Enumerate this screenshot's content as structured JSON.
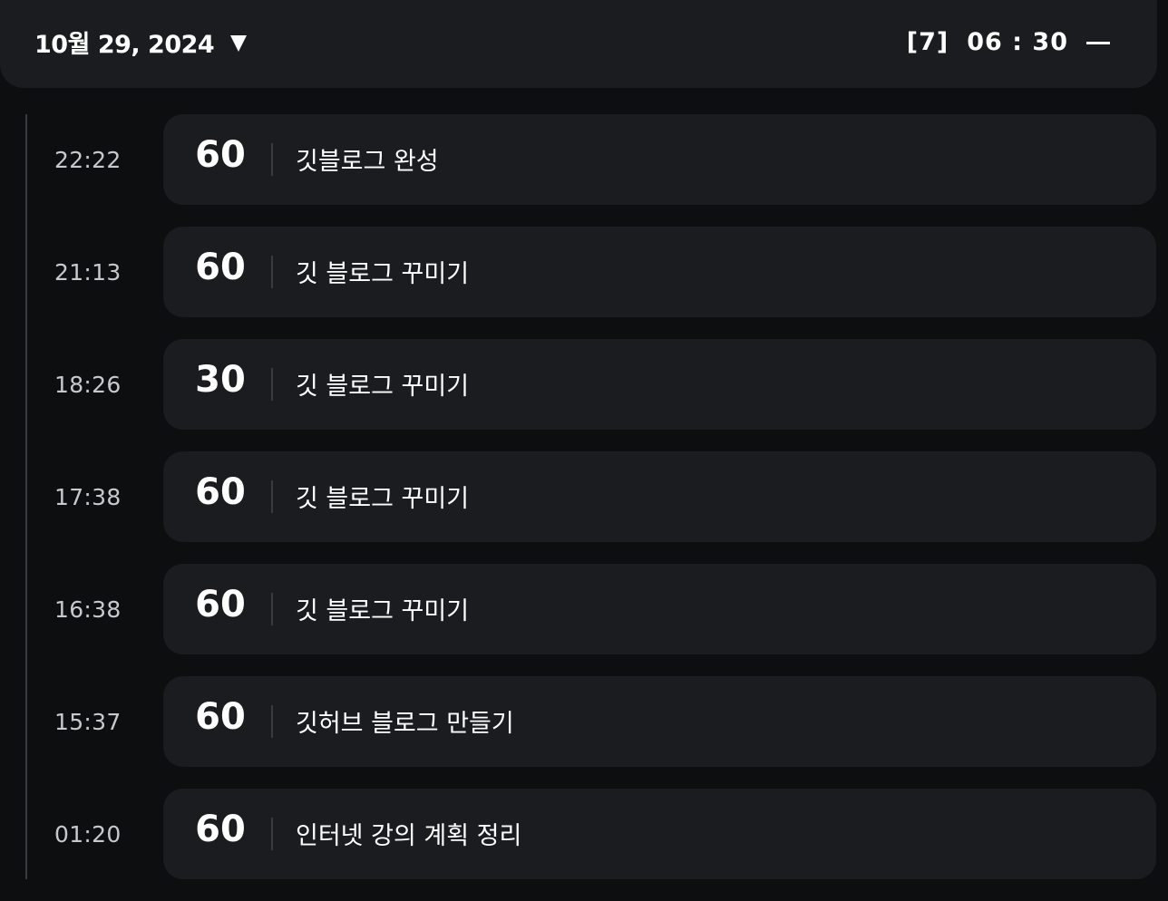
{
  "header": {
    "date": "10월 29, 2024",
    "count": "[7]",
    "timer": "06 : 30"
  },
  "entries": [
    {
      "time": "22:22",
      "minutes": "60",
      "task": "깃블로그 완성"
    },
    {
      "time": "21:13",
      "minutes": "60",
      "task": "깃 블로그 꾸미기"
    },
    {
      "time": "18:26",
      "minutes": "30",
      "task": "깃 블로그 꾸미기"
    },
    {
      "time": "17:38",
      "minutes": "60",
      "task": "깃 블로그 꾸미기"
    },
    {
      "time": "16:38",
      "minutes": "60",
      "task": "깃 블로그 꾸미기"
    },
    {
      "time": "15:37",
      "minutes": "60",
      "task": "깃허브 블로그 만들기"
    },
    {
      "time": "01:20",
      "minutes": "60",
      "task": "인터넷 강의 계획 정리"
    }
  ],
  "colors": {
    "background": "#0d0e10",
    "card": "#1b1c20",
    "text": "#ffffff",
    "muted": "#c8c9cc",
    "divider": "#3a3b3f"
  },
  "icons": {
    "date_dropdown": "caret-down-icon",
    "collapse": "minus-icon"
  }
}
